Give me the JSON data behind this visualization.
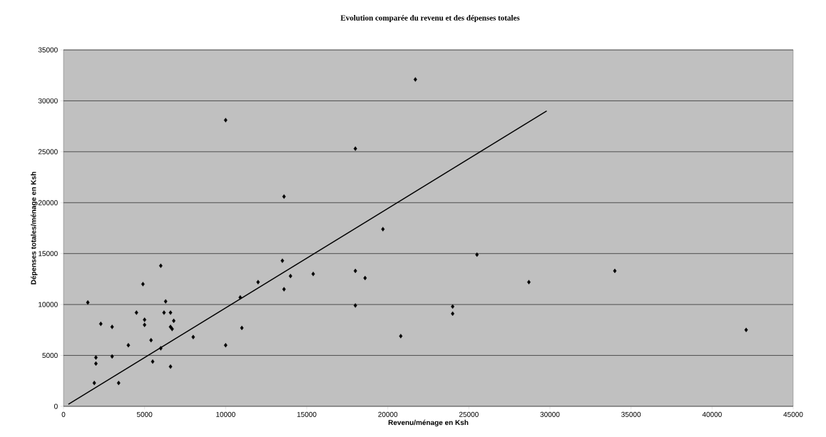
{
  "chart_data": {
    "type": "scatter",
    "title": "Evolution comparée du revenu et des dépenses totales",
    "xlabel": "Revenu/ménage en Ksh",
    "ylabel": "Dépenses totales/ménage en Ksh",
    "xlim": [
      0,
      45000
    ],
    "ylim": [
      0,
      35000
    ],
    "xticks": [
      0,
      5000,
      10000,
      15000,
      20000,
      25000,
      30000,
      35000,
      40000,
      45000
    ],
    "yticks": [
      0,
      5000,
      10000,
      15000,
      20000,
      25000,
      30000,
      35000
    ],
    "grid": "y",
    "marker": "diamond",
    "series": [
      {
        "color": "#000000",
        "x": [
          1500,
          2000,
          2000,
          1900,
          2300,
          3000,
          3000,
          3400,
          4000,
          4500,
          4900,
          5000,
          5000,
          5400,
          5500,
          6000,
          6000,
          6300,
          6200,
          6600,
          6600,
          6700,
          6800,
          6600,
          8000,
          10000,
          10000,
          10900,
          11000,
          12000,
          13500,
          13600,
          13600,
          14000,
          15400,
          18000,
          18000,
          18000,
          18600,
          19700,
          20800,
          21700,
          24000,
          24000,
          25500,
          28700,
          34000,
          42100
        ],
        "values": [
          10200,
          4800,
          4200,
          2300,
          8100,
          7800,
          4900,
          2300,
          6000,
          9200,
          12000,
          8000,
          8500,
          6500,
          4400,
          13800,
          5700,
          10300,
          9200,
          9200,
          7800,
          7600,
          8400,
          3900,
          6800,
          28100,
          6000,
          10700,
          7700,
          12200,
          14300,
          20600,
          11500,
          12800,
          13000,
          25300,
          13300,
          9900,
          12600,
          17400,
          6900,
          32100,
          9800,
          9100,
          14900,
          12200,
          13300,
          7500
        ]
      },
      {
        "type": "line",
        "color": "#000000",
        "marker": "none",
        "x": [
          300,
          29800
        ],
        "values": [
          200,
          29000
        ]
      }
    ]
  }
}
